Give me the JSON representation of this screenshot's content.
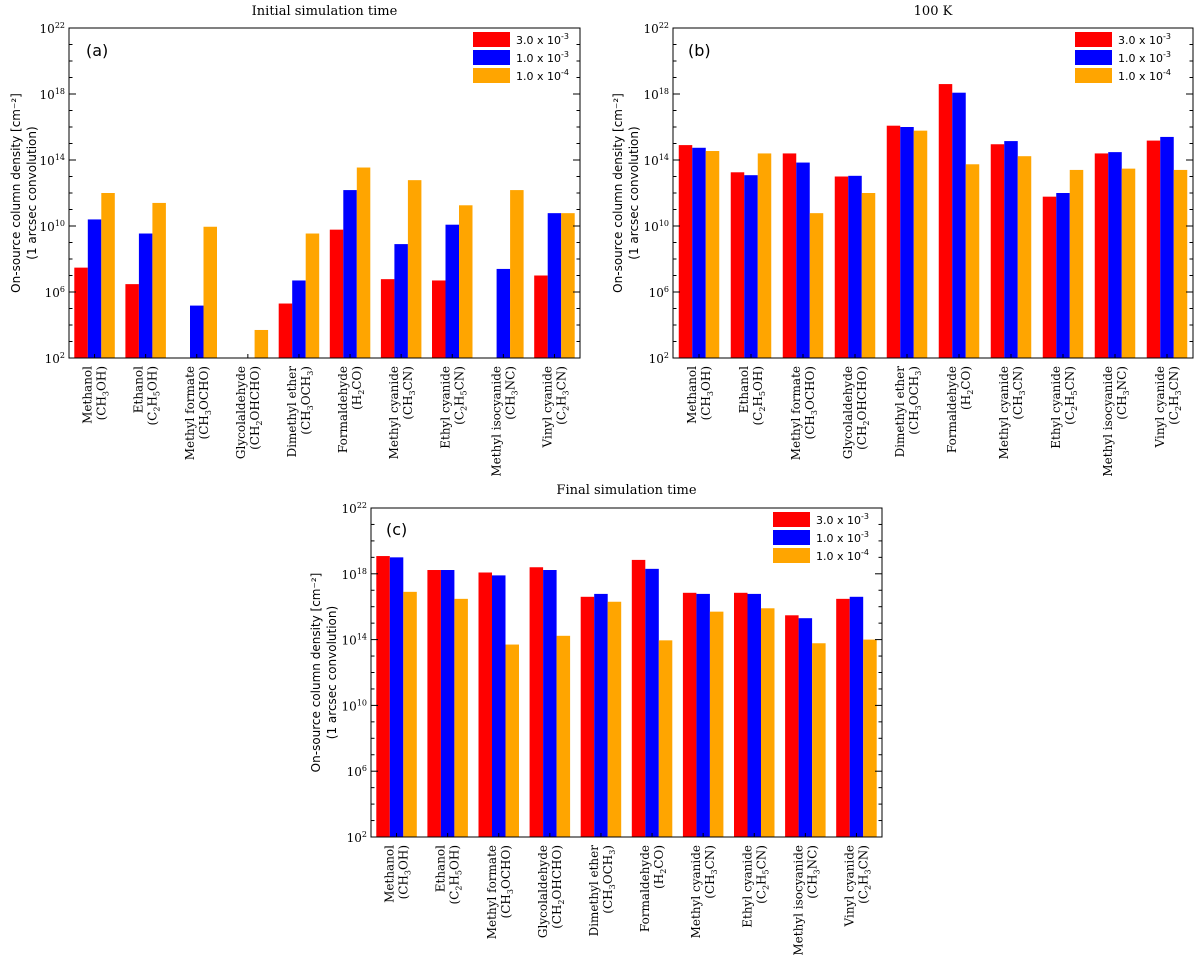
{
  "chart_data": [
    {
      "type": "bar",
      "panel_label": "(a)",
      "title": "Initial simulation time",
      "ylabel_line1": "On-source column density [cm⁻²]",
      "ylabel_line2": "(1 arcsec convolution)",
      "yscale": "log",
      "ylim": [
        100,
        1e+22
      ],
      "yticks": [
        "10^2",
        "10^6",
        "10^10",
        "10^14",
        "10^18",
        "10^22"
      ],
      "legend_position": "top-right",
      "categories": [
        {
          "name": "Methanol",
          "formula": "(CH_3OH)"
        },
        {
          "name": "Ethanol",
          "formula": "(C_2H_5OH)"
        },
        {
          "name": "Methyl formate",
          "formula": "(CH_3OCHO)"
        },
        {
          "name": "Glycolaldehyde",
          "formula": "(CH_2OHCHO)"
        },
        {
          "name": "Dimethyl ether",
          "formula": "(CH_3OCH_3)"
        },
        {
          "name": "Formaldehyde",
          "formula": "(H_2CO)"
        },
        {
          "name": "Methyl cyanide",
          "formula": "(CH_3CN)"
        },
        {
          "name": "Ethyl cyanide",
          "formula": "(C_2H_5CN)"
        },
        {
          "name": "Methyl isocyanide",
          "formula": "(CH_3NC)"
        },
        {
          "name": "Vinyl cyanide",
          "formula": "(C_2H_3CN)"
        }
      ],
      "series": [
        {
          "name": "3.0 x 10^-3",
          "color": "#ff0000",
          "values": [
            30000000.0,
            3000000.0,
            null,
            null,
            200000.0,
            6000000000.0,
            6000000.0,
            5000000.0,
            null,
            10000000.0
          ]
        },
        {
          "name": "1.0 x 10^-3",
          "color": "#0000ff",
          "values": [
            25000000000.0,
            3500000000.0,
            150000.0,
            null,
            5000000.0,
            1500000000000.0,
            800000000.0,
            12000000000.0,
            25000000.0,
            60000000000.0
          ]
        },
        {
          "name": "1.0 x 10^-4",
          "color": "#ffa500",
          "values": [
            1000000000000.0,
            250000000000.0,
            9000000000.0,
            5000.0,
            3500000000.0,
            35000000000000.0,
            6000000000000.0,
            180000000000.0,
            1500000000000.0,
            60000000000.0
          ]
        }
      ]
    },
    {
      "type": "bar",
      "panel_label": "(b)",
      "title": "100 K",
      "ylabel_line1": "On-source column density [cm⁻²]",
      "ylabel_line2": "(1 arcsec convolution)",
      "yscale": "log",
      "ylim": [
        100,
        1e+22
      ],
      "yticks": [
        "10^2",
        "10^6",
        "10^10",
        "10^14",
        "10^18",
        "10^22"
      ],
      "legend_position": "top-right",
      "categories": [
        {
          "name": "Methanol",
          "formula": "(CH_3OH)"
        },
        {
          "name": "Ethanol",
          "formula": "(C_2H_5OH)"
        },
        {
          "name": "Methyl formate",
          "formula": "(CH_3OCHO)"
        },
        {
          "name": "Glycolaldehyde",
          "formula": "(CH_2OHCHO)"
        },
        {
          "name": "Dimethyl ether",
          "formula": "(CH_3OCH_3)"
        },
        {
          "name": "Formaldehyde",
          "formula": "(H_2CO)"
        },
        {
          "name": "Methyl cyanide",
          "formula": "(CH_3CN)"
        },
        {
          "name": "Ethyl cyanide",
          "formula": "(C_2H_5CN)"
        },
        {
          "name": "Methyl isocyanide",
          "formula": "(CH_3NC)"
        },
        {
          "name": "Vinyl cyanide",
          "formula": "(C_2H_3CN)"
        }
      ],
      "series": [
        {
          "name": "3.0 x 10^-3",
          "color": "#ff0000",
          "values": [
            800000000000000.0,
            18000000000000.0,
            250000000000000.0,
            10000000000000.0,
            1.2e+16,
            4e+18,
            900000000000000.0,
            600000000000.0,
            250000000000000.0,
            1500000000000000.0
          ]
        },
        {
          "name": "1.0 x 10^-3",
          "color": "#0000ff",
          "values": [
            550000000000000.0,
            12000000000000.0,
            70000000000000.0,
            11000000000000.0,
            1e+16,
            1.2e+18,
            1400000000000000.0,
            1000000000000.0,
            300000000000000.0,
            2500000000000000.0
          ]
        },
        {
          "name": "1.0 x 10^-4",
          "color": "#ffa500",
          "values": [
            350000000000000.0,
            250000000000000.0,
            60000000000.0,
            1000000000000.0,
            6000000000000000.0,
            55000000000000.0,
            170000000000000.0,
            25000000000000.0,
            30000000000000.0,
            25000000000000.0
          ]
        }
      ]
    },
    {
      "type": "bar",
      "panel_label": "(c)",
      "title": "Final simulation time",
      "ylabel_line1": "On-source column density [cm⁻²]",
      "ylabel_line2": "(1 arcsec convolution)",
      "yscale": "log",
      "ylim": [
        100,
        1e+22
      ],
      "yticks": [
        "10^2",
        "10^6",
        "10^10",
        "10^14",
        "10^18",
        "10^22"
      ],
      "legend_position": "top-right",
      "categories": [
        {
          "name": "Methanol",
          "formula": "(CH_3OH)"
        },
        {
          "name": "Ethanol",
          "formula": "(C_2H_5OH)"
        },
        {
          "name": "Methyl formate",
          "formula": "(CH_3OCHO)"
        },
        {
          "name": "Glycolaldehyde",
          "formula": "(CH_2OHCHO)"
        },
        {
          "name": "Dimethyl ether",
          "formula": "(CH_3OCH_3)"
        },
        {
          "name": "Formaldehyde",
          "formula": "(H_2CO)"
        },
        {
          "name": "Methyl cyanide",
          "formula": "(CH_3CN)"
        },
        {
          "name": "Ethyl cyanide",
          "formula": "(C_2H_5CN)"
        },
        {
          "name": "Methyl isocyanide",
          "formula": "(CH_3NC)"
        },
        {
          "name": "Vinyl cyanide",
          "formula": "(C_2H_3CN)"
        }
      ],
      "series": [
        {
          "name": "3.0 x 10^-3",
          "color": "#ff0000",
          "values": [
            1.2e+19,
            1.7e+18,
            1.2e+18,
            2.5e+18,
            4e+16,
            7e+18,
            7e+16,
            7e+16,
            3000000000000000.0,
            3e+16
          ]
        },
        {
          "name": "1.0 x 10^-3",
          "color": "#0000ff",
          "values": [
            1e+19,
            1.7e+18,
            8e+17,
            1.7e+18,
            6e+16,
            2e+18,
            6e+16,
            6e+16,
            2000000000000000.0,
            4e+16
          ]
        },
        {
          "name": "1.0 x 10^-4",
          "color": "#ffa500",
          "values": [
            8e+16,
            3e+16,
            50000000000000.0,
            170000000000000.0,
            2e+16,
            90000000000000.0,
            5000000000000000.0,
            8000000000000000.0,
            60000000000000.0,
            100000000000000.0
          ]
        }
      ]
    }
  ]
}
